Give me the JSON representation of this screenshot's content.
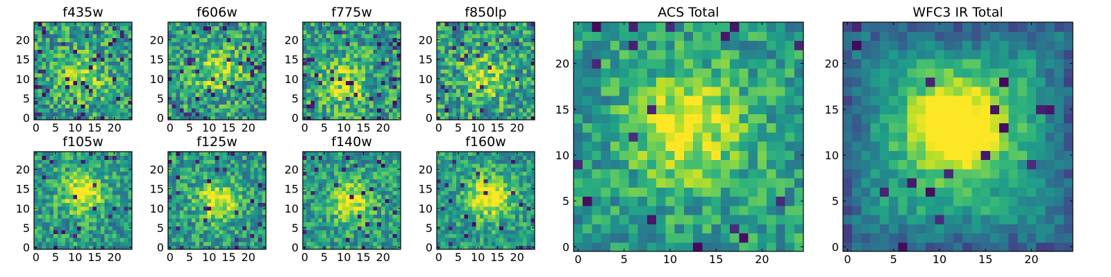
{
  "chart_data": [
    {
      "type": "heatmap",
      "title": "f435w",
      "xticks": [
        "0",
        "5",
        "10",
        "15",
        "20"
      ],
      "yticks": [
        "0",
        "5",
        "10",
        "15",
        "20"
      ],
      "grid_size": 25,
      "xlim": [
        0,
        25
      ],
      "ylim": [
        0,
        25
      ],
      "colormap": "viridis",
      "features": {
        "seed": 11,
        "noise": 0.55,
        "dark_frac": 0.06,
        "blob": [
          12,
          11,
          6,
          0.25
        ]
      }
    },
    {
      "type": "heatmap",
      "title": "f606w",
      "xticks": [
        "0",
        "5",
        "10",
        "15",
        "20"
      ],
      "yticks": [
        "0",
        "5",
        "10",
        "15",
        "20"
      ],
      "grid_size": 25,
      "xlim": [
        0,
        25
      ],
      "ylim": [
        0,
        25
      ],
      "colormap": "viridis",
      "features": {
        "seed": 23,
        "noise": 0.55,
        "dark_frac": 0.05,
        "blob": [
          12,
          12,
          6,
          0.3
        ]
      }
    },
    {
      "type": "heatmap",
      "title": "f775w",
      "xticks": [
        "0",
        "5",
        "10",
        "15",
        "20"
      ],
      "yticks": [
        "0",
        "5",
        "10",
        "15",
        "20"
      ],
      "grid_size": 25,
      "xlim": [
        0,
        25
      ],
      "ylim": [
        0,
        25
      ],
      "colormap": "viridis",
      "features": {
        "seed": 37,
        "noise": 0.55,
        "dark_frac": 0.06,
        "blob": [
          10,
          9,
          6,
          0.3
        ]
      }
    },
    {
      "type": "heatmap",
      "title": "f850lp",
      "xticks": [
        "0",
        "5",
        "10",
        "15",
        "20"
      ],
      "yticks": [
        "0",
        "5",
        "10",
        "15",
        "20"
      ],
      "grid_size": 25,
      "xlim": [
        0,
        25
      ],
      "ylim": [
        0,
        25
      ],
      "colormap": "viridis",
      "features": {
        "seed": 41,
        "noise": 0.55,
        "dark_frac": 0.05,
        "blob": [
          12,
          10,
          6,
          0.3
        ]
      }
    },
    {
      "type": "heatmap",
      "title": "f105w",
      "xticks": [
        "0",
        "5",
        "10",
        "15",
        "20"
      ],
      "yticks": [
        "0",
        "5",
        "10",
        "15",
        "20"
      ],
      "grid_size": 25,
      "xlim": [
        0,
        25
      ],
      "ylim": [
        0,
        25
      ],
      "colormap": "viridis",
      "features": {
        "seed": 53,
        "noise": 0.45,
        "dark_frac": 0.04,
        "blob": [
          12,
          14,
          5,
          0.5
        ]
      }
    },
    {
      "type": "heatmap",
      "title": "f125w",
      "xticks": [
        "0",
        "5",
        "10",
        "15",
        "20"
      ],
      "yticks": [
        "0",
        "5",
        "10",
        "15",
        "20"
      ],
      "grid_size": 25,
      "xlim": [
        0,
        25
      ],
      "ylim": [
        0,
        25
      ],
      "colormap": "viridis",
      "features": {
        "seed": 67,
        "noise": 0.45,
        "dark_frac": 0.04,
        "blob": [
          12,
          12,
          5,
          0.45
        ]
      }
    },
    {
      "type": "heatmap",
      "title": "f140w",
      "xticks": [
        "0",
        "5",
        "10",
        "15",
        "20"
      ],
      "yticks": [
        "0",
        "5",
        "10",
        "15",
        "20"
      ],
      "grid_size": 25,
      "xlim": [
        0,
        25
      ],
      "ylim": [
        0,
        25
      ],
      "colormap": "viridis",
      "features": {
        "seed": 71,
        "noise": 0.45,
        "dark_frac": 0.04,
        "blob": [
          12,
          12,
          5,
          0.45
        ]
      }
    },
    {
      "type": "heatmap",
      "title": "f160w",
      "xticks": [
        "0",
        "5",
        "10",
        "15",
        "20"
      ],
      "yticks": [
        "0",
        "5",
        "10",
        "15",
        "20"
      ],
      "grid_size": 25,
      "xlim": [
        0,
        25
      ],
      "ylim": [
        0,
        25
      ],
      "colormap": "viridis",
      "features": {
        "seed": 83,
        "noise": 0.42,
        "dark_frac": 0.04,
        "blob": [
          13,
          13,
          5,
          0.55
        ]
      }
    },
    {
      "type": "heatmap",
      "title": "ACS Total",
      "xticks": [
        "0",
        "5",
        "10",
        "15",
        "20"
      ],
      "yticks": [
        "0",
        "5",
        "10",
        "15",
        "20"
      ],
      "grid_size": 25,
      "xlim": [
        0,
        25
      ],
      "ylim": [
        0,
        25
      ],
      "colormap": "viridis",
      "features": {
        "seed": 97,
        "noise": 0.4,
        "dark_frac": 0.035,
        "blob": [
          12,
          13,
          6,
          0.45
        ]
      }
    },
    {
      "type": "heatmap",
      "title": "WFC3 IR Total",
      "xticks": [
        "0",
        "5",
        "10",
        "15",
        "20"
      ],
      "yticks": [
        "0",
        "5",
        "10",
        "15",
        "20"
      ],
      "grid_size": 25,
      "xlim": [
        0,
        25
      ],
      "ylim": [
        0,
        25
      ],
      "colormap": "viridis",
      "features": {
        "seed": 101,
        "noise": 0.25,
        "dark_frac": 0.02,
        "blob": [
          12,
          13,
          5,
          0.75
        ],
        "edge_dark": 0.25
      }
    }
  ]
}
